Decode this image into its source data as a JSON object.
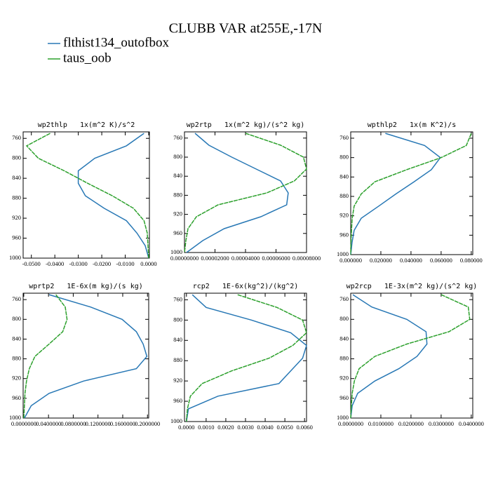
{
  "title": "CLUBB VAR at255E,-17N",
  "legend": [
    {
      "name": "flthist134_outofbox",
      "color": "#2878b5"
    },
    {
      "name": "taus_oob",
      "color": "#2ca02c"
    }
  ],
  "chart_data": [
    {
      "type": "line",
      "title": "wp2thlp   1x(m^2 K)/s^2",
      "y": [
        750,
        775,
        800,
        825,
        850,
        875,
        900,
        925,
        950,
        975,
        1000
      ],
      "ylim": [
        1000,
        747
      ],
      "yticks": [
        760,
        800,
        840,
        880,
        920,
        960,
        1000
      ],
      "xlim": [
        -0.0535,
        0.0003
      ],
      "xticks": [
        {
          "value": -0.05,
          "label": "-0.0500"
        },
        {
          "value": -0.04,
          "label": "-0.0400"
        },
        {
          "value": -0.03,
          "label": "-0.0300"
        },
        {
          "value": -0.02,
          "label": "-0.0200"
        },
        {
          "value": -0.01,
          "label": "-0.0100"
        },
        {
          "value": 0,
          "label": "0.0000"
        }
      ],
      "series": [
        {
          "values": [
            -0.002,
            -0.0095,
            -0.023,
            -0.03,
            -0.03,
            -0.027,
            -0.019,
            -0.0095,
            -0.005,
            -0.0015,
            0
          ]
        },
        {
          "values": [
            -0.042,
            -0.052,
            -0.047,
            -0.036,
            -0.026,
            -0.0155,
            -0.0065,
            -0.002,
            -0.0006,
            -0.0003,
            0
          ]
        }
      ]
    },
    {
      "type": "line",
      "title": "wp2rtp   1x(m^2 kg)/(s^2 kg)",
      "y": [
        750,
        775,
        800,
        825,
        850,
        875,
        900,
        925,
        950,
        975,
        1000
      ],
      "ylim": [
        1000,
        747
      ],
      "yticks": [
        760,
        800,
        840,
        880,
        920,
        960,
        1000
      ],
      "xlim": [
        0,
        8e-05
      ],
      "xticks": [
        {
          "value": 0,
          "label": "0.00000000"
        },
        {
          "value": 2e-05,
          "label": "0.00002000"
        },
        {
          "value": 4e-05,
          "label": "0.00004000"
        },
        {
          "value": 6e-05,
          "label": "0.00006000"
        },
        {
          "value": 8e-05,
          "label": "0.00008000"
        }
      ],
      "series": [
        {
          "values": [
            6.9e-06,
            1.6e-05,
            3.1e-05,
            4.7e-05,
            6.3e-05,
            6.8e-05,
            6.7e-05,
            5e-05,
            2.6e-05,
            1.2e-05,
            1.4e-06
          ]
        },
        {
          "values": [
            4e-05,
            6.3e-05,
            7.8e-05,
            8e-05,
            7.2e-05,
            5.4e-05,
            2.2e-05,
            7.8e-06,
            2.3e-06,
            9e-07,
            0
          ]
        }
      ]
    },
    {
      "type": "line",
      "title": "wpthlp2   1x(m K^2)/s",
      "y": [
        750,
        775,
        800,
        825,
        850,
        875,
        900,
        925,
        950,
        975,
        1000
      ],
      "ylim": [
        1000,
        747
      ],
      "yticks": [
        760,
        800,
        840,
        880,
        920,
        960,
        1000
      ],
      "xlim": [
        0,
        0.081
      ],
      "xticks": [
        {
          "value": 0,
          "label": "0.000000"
        },
        {
          "value": 0.02,
          "label": "0.020000"
        },
        {
          "value": 0.04,
          "label": "0.040000"
        },
        {
          "value": 0.06,
          "label": "0.060000"
        },
        {
          "value": 0.08,
          "label": "0.080000"
        }
      ],
      "series": [
        {
          "values": [
            0.023,
            0.049,
            0.0595,
            0.0535,
            0.042,
            0.03,
            0.0186,
            0.007,
            0.0023,
            0.0009,
            0
          ]
        },
        {
          "values": [
            0.08,
            0.0767,
            0.06,
            0.037,
            0.016,
            0.007,
            0.0023,
            0.001,
            0.0005,
            0.0002,
            0
          ]
        }
      ]
    },
    {
      "type": "line",
      "title": "wprtp2   1E-6x(m kg)/(s kg)",
      "y": [
        750,
        775,
        800,
        825,
        850,
        875,
        900,
        925,
        950,
        975,
        1000
      ],
      "ylim": [
        1000,
        747
      ],
      "yticks": [
        760,
        800,
        840,
        880,
        920,
        960,
        1000
      ],
      "xlim": [
        -0.001,
        0.202
      ],
      "xticks": [
        {
          "value": 0,
          "label": "0.0000000"
        },
        {
          "value": 0.04,
          "label": "0.0400000"
        },
        {
          "value": 0.08,
          "label": "0.0800000"
        },
        {
          "value": 0.12,
          "label": "0.1200000"
        },
        {
          "value": 0.16,
          "label": "0.1600000"
        },
        {
          "value": 0.2,
          "label": "0.2000000"
        }
      ],
      "series": [
        {
          "values": [
            0.041,
            0.108,
            0.159,
            0.182,
            0.193,
            0.199,
            0.182,
            0.097,
            0.041,
            0.012,
            0.001
          ]
        },
        {
          "values": [
            0.052,
            0.067,
            0.07,
            0.063,
            0.041,
            0.018,
            0.009,
            0.0045,
            0.002,
            0.001,
            0
          ]
        }
      ]
    },
    {
      "type": "line",
      "title": "rcp2   1E-6x(kg^2)/(kg^2)",
      "y": [
        750,
        775,
        800,
        825,
        850,
        875,
        900,
        925,
        950,
        975,
        1000
      ],
      "ylim": [
        1000,
        747
      ],
      "yticks": [
        760,
        800,
        840,
        880,
        920,
        960,
        1000
      ],
      "xlim": [
        -0.0001,
        0.0061
      ],
      "xticks": [
        {
          "value": 0,
          "label": "0.0000"
        },
        {
          "value": 0.001,
          "label": "0.0010"
        },
        {
          "value": 0.002,
          "label": "0.0020"
        },
        {
          "value": 0.003,
          "label": "0.0030"
        },
        {
          "value": 0.004,
          "label": "0.0040"
        },
        {
          "value": 0.005,
          "label": "0.0050"
        },
        {
          "value": 0.006,
          "label": "0.0060"
        }
      ],
      "series": [
        {
          "values": [
            0.0003,
            0.001,
            0.0033,
            0.0053,
            0.0061,
            0.0059,
            0.0053,
            0.0047,
            0.0016,
            0.0001,
            0
          ]
        },
        {
          "values": [
            0.0026,
            0.0046,
            0.0059,
            0.0061,
            0.0054,
            0.0042,
            0.0023,
            0.0008,
            0.0002,
            5e-05,
            0
          ]
        }
      ]
    },
    {
      "type": "line",
      "title": "wp2rcp   1E-3x(m^2 kg)/(s^2 kg)",
      "y": [
        750,
        775,
        800,
        825,
        850,
        875,
        900,
        925,
        950,
        975,
        1000
      ],
      "ylim": [
        1000,
        747
      ],
      "yticks": [
        760,
        800,
        840,
        880,
        920,
        960,
        1000
      ],
      "xlim": [
        0,
        0.0405
      ],
      "xticks": [
        {
          "value": 0,
          "label": "0.0000000"
        },
        {
          "value": 0.01,
          "label": "0.0100000"
        },
        {
          "value": 0.02,
          "label": "0.0200000"
        },
        {
          "value": 0.03,
          "label": "0.0300000"
        },
        {
          "value": 0.04,
          "label": "0.0400000"
        }
      ],
      "series": [
        {
          "values": [
            0.0007,
            0.007,
            0.0186,
            0.025,
            0.0253,
            0.022,
            0.016,
            0.008,
            0.0023,
            0.0005,
            0
          ]
        },
        {
          "values": [
            0.03,
            0.039,
            0.0395,
            0.0326,
            0.0186,
            0.008,
            0.0028,
            0.0012,
            0.0005,
            0.0002,
            0
          ]
        }
      ]
    }
  ]
}
